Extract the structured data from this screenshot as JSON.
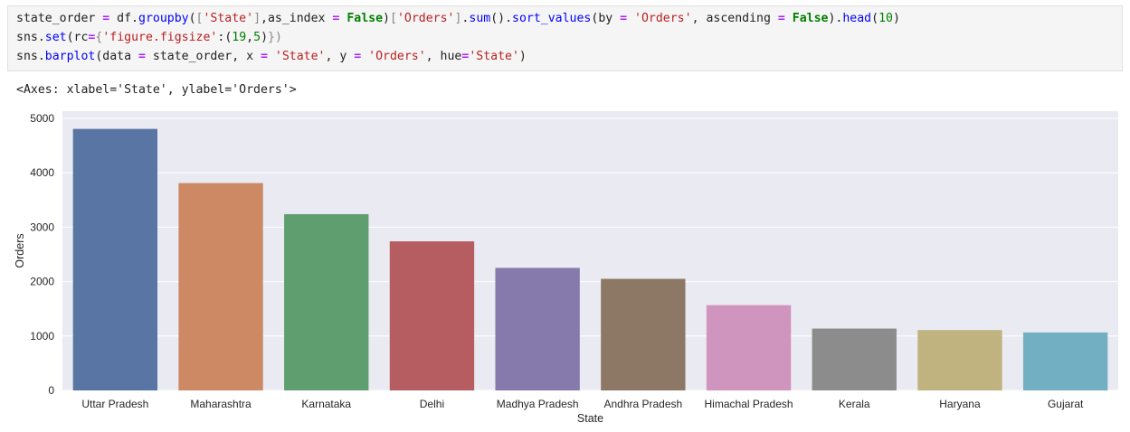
{
  "code_cell": {
    "line1": {
      "a": "state_order ",
      "op1": "=",
      "b": " df.",
      "fn1": "groupby",
      "c": "(",
      "d": "[",
      "s1": "'State'",
      "e": "]",
      "f": ",as_index ",
      "op2": "=",
      "g": " ",
      "kw1": "False",
      "h": ")",
      "i": "[",
      "s2": "'Orders'",
      "j": "]",
      "k": ".",
      "fn2": "sum",
      "l": "().",
      "fn3": "sort_values",
      "m": "(by ",
      "op3": "=",
      "n": " ",
      "s3": "'Orders'",
      "o": ", ascending ",
      "op4": "=",
      "p": " ",
      "kw2": "False",
      "q": ").",
      "fn4": "head",
      "r": "(",
      "num1": "10",
      "s": ")"
    },
    "line2": {
      "a": "sns.",
      "fn1": "set",
      "b": "(rc",
      "op1": "=",
      "c": "{",
      "s1": "'figure.figsize'",
      "d": ":(",
      "num1": "19",
      "e": ",",
      "num2": "5",
      "f": ")",
      "g": "})"
    },
    "line3": {
      "a": "sns.",
      "fn1": "barplot",
      "b": "(data ",
      "op1": "=",
      "c": " state_order, x ",
      "op2": "=",
      "d": " ",
      "s1": "'State'",
      "e": ", y ",
      "op3": "=",
      "f": " ",
      "s2": "'Orders'",
      "g": ", hue",
      "op4": "=",
      "s3": "'State'",
      "h": ")"
    }
  },
  "output": {
    "text": "<Axes: xlabel='State', ylabel='Orders'>"
  },
  "chart_data": {
    "type": "bar",
    "xlabel": "State",
    "ylabel": "Orders",
    "categories": [
      "Uttar Pradesh",
      "Maharashtra",
      "Karnataka",
      "Delhi",
      "Madhya Pradesh",
      "Andhra Pradesh",
      "Himachal Pradesh",
      "Kerala",
      "Haryana",
      "Gujarat"
    ],
    "values": [
      4807,
      3811,
      3240,
      2740,
      2252,
      2051,
      1568,
      1137,
      1109,
      1066
    ],
    "colors": [
      "#5975a4",
      "#cc8963",
      "#5f9e6e",
      "#b55d60",
      "#857aab",
      "#8d7866",
      "#d095bf",
      "#8c8c8c",
      "#c1b37f",
      "#73afc2"
    ],
    "yticks": [
      0,
      1000,
      2000,
      3000,
      4000,
      5000
    ],
    "ylim": [
      0,
      5000
    ],
    "grid": true,
    "style": "seaborn-darkgrid",
    "background": "#eaeaf2"
  }
}
